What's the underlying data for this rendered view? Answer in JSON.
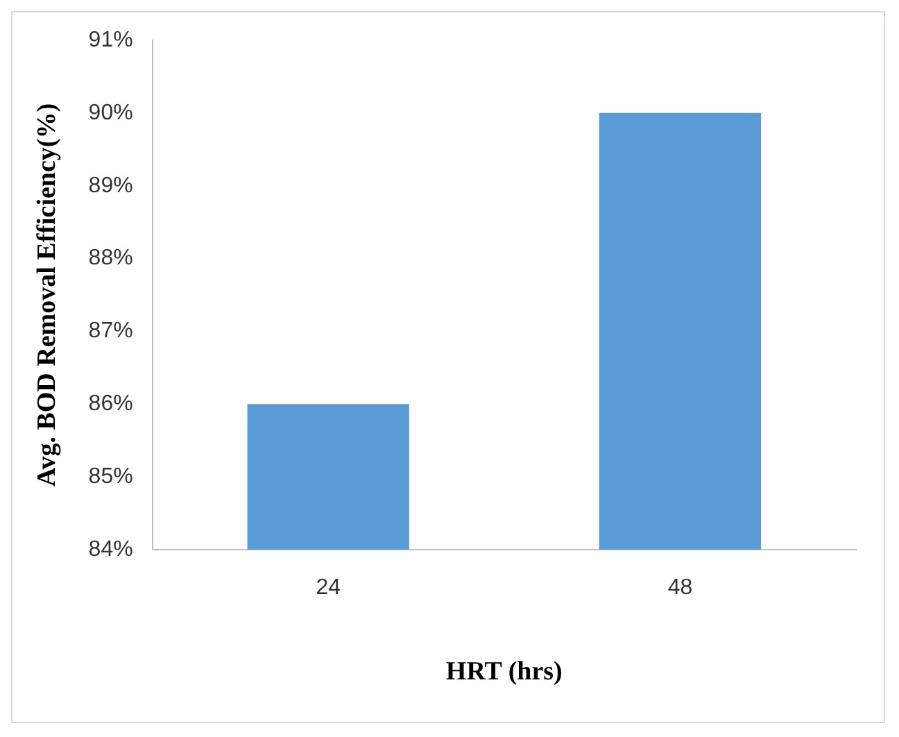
{
  "chart_data": {
    "type": "bar",
    "xlabel": "HRT (hrs)",
    "ylabel": "Avg. BOD Removal Efficiency(%)",
    "categories": [
      "24",
      "48"
    ],
    "values": [
      86,
      90
    ],
    "color": "#5b9bd5",
    "ylim": [
      84,
      91
    ],
    "yticks": [
      {
        "value": 84,
        "label": "84%"
      },
      {
        "value": 85,
        "label": "85%"
      },
      {
        "value": 86,
        "label": "86%"
      },
      {
        "value": 87,
        "label": "87%"
      },
      {
        "value": 88,
        "label": "88%"
      },
      {
        "value": 89,
        "label": "89%"
      },
      {
        "value": 90,
        "label": "90%"
      },
      {
        "value": 91,
        "label": "91%"
      }
    ],
    "grid": false,
    "legend": false
  }
}
